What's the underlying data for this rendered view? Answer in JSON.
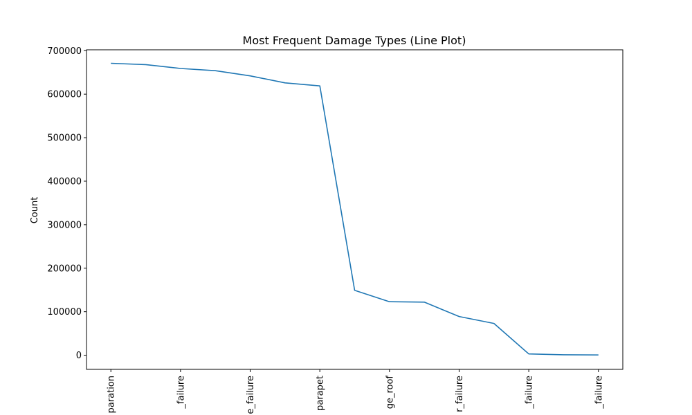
{
  "chart_data": {
    "type": "line",
    "title": "Most Frequent Damage Types (Line Plot)",
    "xlabel": "",
    "ylabel": "Count",
    "ylim": [
      -32500,
      702000
    ],
    "yticks": [
      0,
      100000,
      200000,
      300000,
      400000,
      500000,
      600000,
      700000
    ],
    "ytick_labels": [
      "0",
      "100000",
      "200000",
      "300000",
      "400000",
      "500000",
      "600000",
      "700000"
    ],
    "xtick_labels": [
      "paration",
      "_failure",
      "e_failure",
      "parapet",
      "ge_roof",
      "r_failure",
      "_failure",
      "_failure"
    ],
    "xtick_positions": [
      0,
      2,
      4,
      6,
      8,
      10,
      12,
      14
    ],
    "x": [
      0,
      1,
      2,
      3,
      4,
      5,
      6,
      7,
      8,
      9,
      10,
      11,
      12,
      13,
      14
    ],
    "series": [
      {
        "values": [
          671000,
          668000,
          659000,
          654000,
          642000,
          626000,
          619000,
          149000,
          123000,
          122000,
          89000,
          73000,
          3000,
          1000,
          500
        ]
      }
    ],
    "line_color": "#1f77b4",
    "grid": false,
    "legend": "none"
  }
}
